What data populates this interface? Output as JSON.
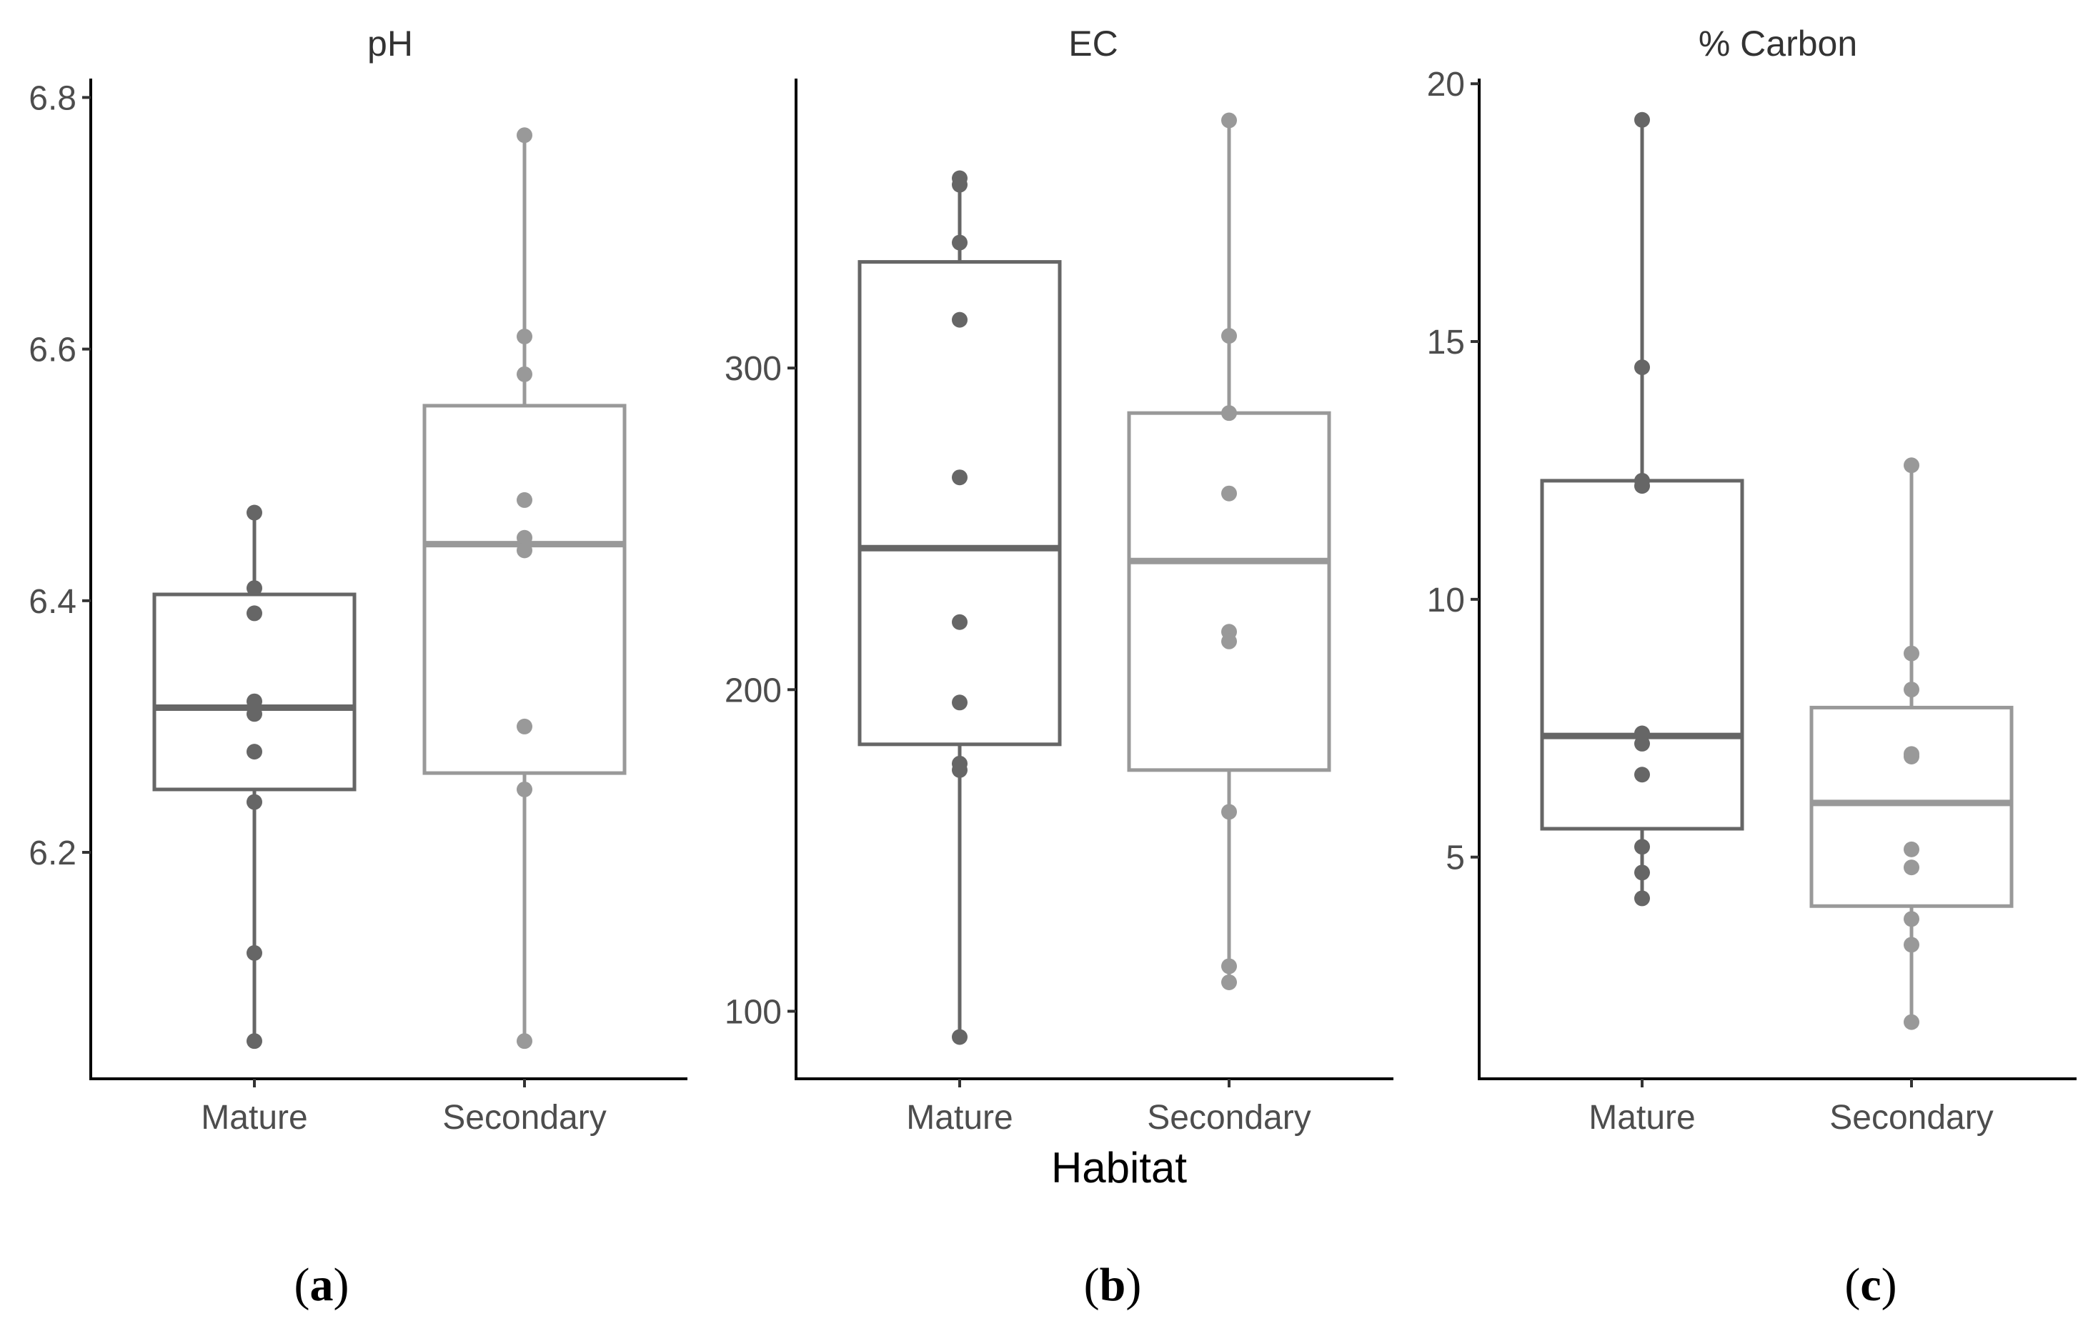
{
  "chart_data": [
    {
      "type": "box",
      "title": "pH",
      "panel_label": "a",
      "categories": [
        "Mature",
        "Secondary"
      ],
      "ylim": [
        6.02,
        6.815
      ],
      "yticks": [
        6.2,
        6.4,
        6.6,
        6.8
      ],
      "yticklabels": [
        "6.2",
        "6.4",
        "6.6",
        "6.8"
      ],
      "boxes": [
        {
          "category": "Mature",
          "color": "#666666",
          "whisker_low": 6.05,
          "q1": 6.25,
          "median": 6.315,
          "q3": 6.405,
          "whisker_high": 6.47,
          "points": [
            6.47,
            6.41,
            6.39,
            6.32,
            6.31,
            6.28,
            6.24,
            6.12,
            6.05
          ]
        },
        {
          "category": "Secondary",
          "color": "#999999",
          "whisker_low": 6.05,
          "q1": 6.263,
          "median": 6.445,
          "q3": 6.555,
          "whisker_high": 6.77,
          "points": [
            6.77,
            6.61,
            6.58,
            6.48,
            6.45,
            6.44,
            6.3,
            6.25,
            6.05
          ]
        }
      ]
    },
    {
      "type": "box",
      "title": "EC",
      "panel_label": "b",
      "categories": [
        "Mature",
        "Secondary"
      ],
      "ylim": [
        79,
        390
      ],
      "yticks": [
        100,
        200,
        300
      ],
      "yticklabels": [
        "100",
        "200",
        "300"
      ],
      "boxes": [
        {
          "category": "Mature",
          "color": "#666666",
          "whisker_low": 92,
          "q1": 183,
          "median": 244,
          "q3": 333,
          "whisker_high": 359,
          "points": [
            359,
            357,
            339,
            315,
            266,
            221,
            196,
            177,
            175,
            92
          ]
        },
        {
          "category": "Secondary",
          "color": "#999999",
          "whisker_low": 109,
          "q1": 175,
          "median": 240,
          "q3": 286,
          "whisker_high": 377,
          "points": [
            377,
            310,
            286,
            261,
            218,
            215,
            162,
            114,
            109
          ]
        }
      ]
    },
    {
      "type": "box",
      "title": "% Carbon",
      "panel_label": "c",
      "categories": [
        "Mature",
        "Secondary"
      ],
      "ylim": [
        0.7,
        20.1
      ],
      "yticks": [
        5,
        10,
        15,
        20
      ],
      "yticklabels": [
        "5",
        "10",
        "15",
        "20"
      ],
      "boxes": [
        {
          "category": "Mature",
          "color": "#666666",
          "whisker_low": 4.2,
          "q1": 5.55,
          "median": 7.35,
          "q3": 12.3,
          "whisker_high": 19.3,
          "points": [
            19.3,
            14.5,
            12.3,
            12.2,
            7.4,
            7.2,
            6.6,
            5.2,
            4.7,
            4.2
          ]
        },
        {
          "category": "Secondary",
          "color": "#999999",
          "whisker_low": 1.8,
          "q1": 4.05,
          "median": 6.05,
          "q3": 7.9,
          "whisker_high": 12.6,
          "points": [
            12.6,
            8.95,
            8.25,
            7.0,
            6.95,
            5.15,
            4.8,
            3.8,
            3.3,
            1.8
          ]
        }
      ]
    }
  ],
  "x_axis_title": "Habitat"
}
